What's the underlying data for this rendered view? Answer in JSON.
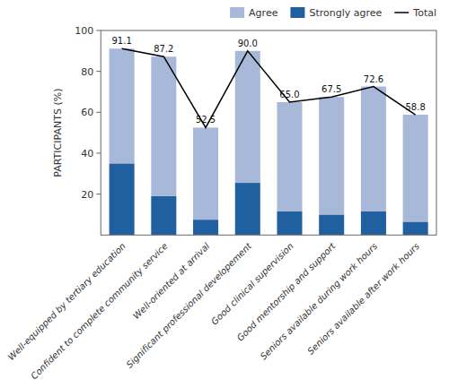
{
  "chart_data": {
    "type": "bar",
    "stacked": true,
    "grid": false,
    "legend": "upper right",
    "y_label": "PARTICIPANTS (%)",
    "categories": [
      "Well-equipped by tertiary education",
      "Confident to complete community service",
      "Well-oriented at arrival",
      "Significant professional developement",
      "Good clinical supervision",
      "Good mentorship and support",
      "Seniors available during work hours",
      "Seniors available after work hours"
    ],
    "series": [
      {
        "name": "Strongly agree",
        "type": "bar",
        "color": "#2060a0",
        "values": [
          35.0,
          19.0,
          7.5,
          25.5,
          11.5,
          10.0,
          11.5,
          6.5
        ]
      },
      {
        "name": "Agree",
        "type": "bar",
        "color": "#a8b8d8",
        "values": [
          56.1,
          68.2,
          45.0,
          64.5,
          53.5,
          57.5,
          61.1,
          52.3
        ]
      },
      {
        "name": "Total",
        "type": "line",
        "color": "#000000",
        "line_style": "solid",
        "data_labels": true,
        "values": [
          91.1,
          87.2,
          52.5,
          90.0,
          65.0,
          67.5,
          72.6,
          58.8
        ],
        "value_labels": [
          "91.1",
          "87.2",
          "52.5",
          "90.0",
          "65.0",
          "67.5",
          "72.6",
          "58.8"
        ]
      }
    ],
    "ylim": [
      0,
      100
    ],
    "yticks": [
      20,
      40,
      60,
      80,
      100
    ]
  }
}
